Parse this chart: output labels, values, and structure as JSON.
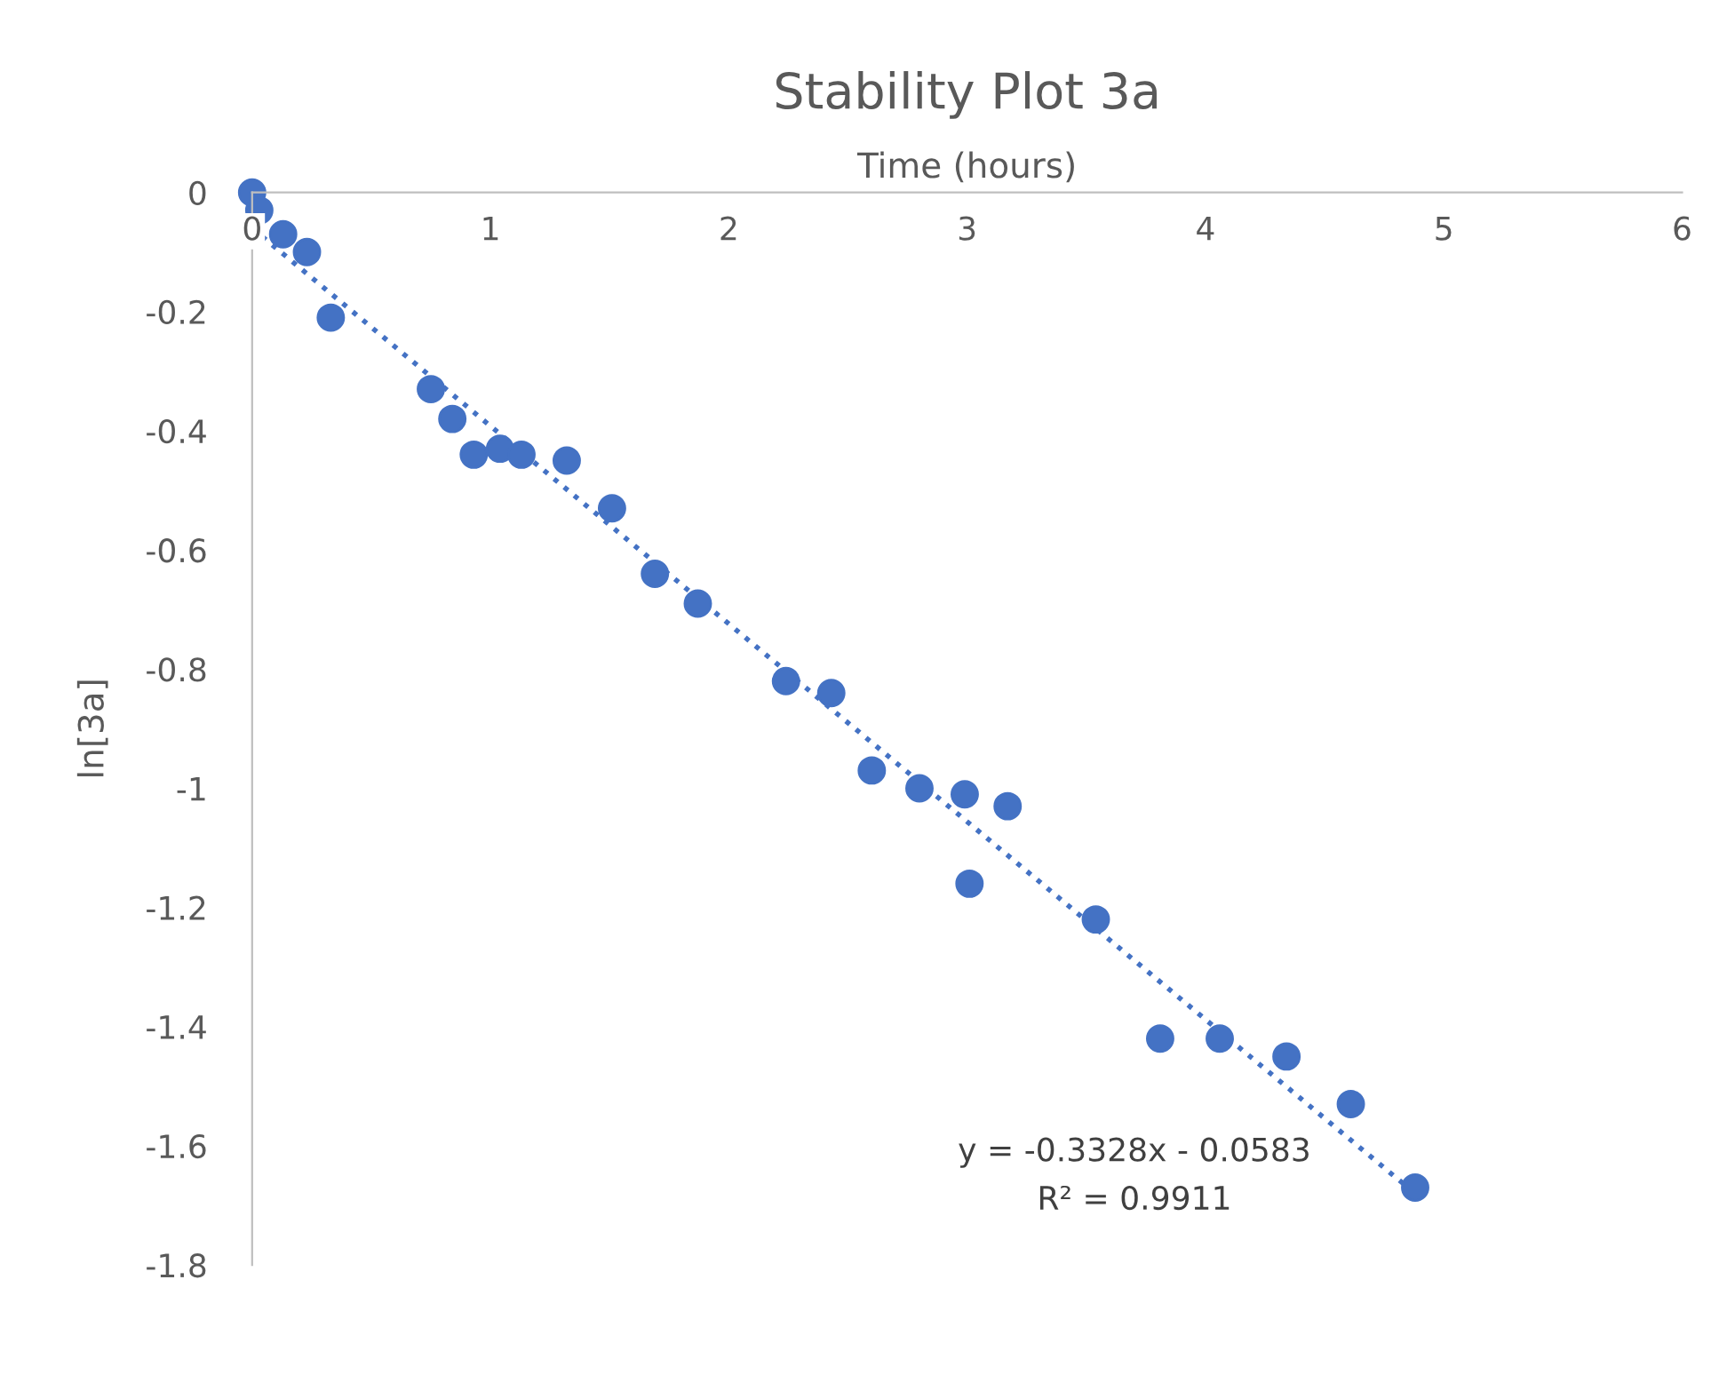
{
  "chart_data": {
    "type": "scatter",
    "title": "Stability Plot 3a",
    "xlabel": "Time (hours)",
    "ylabel": "ln[3a]",
    "xlim": [
      0,
      6
    ],
    "xticks": [
      0,
      1,
      2,
      3,
      4,
      5,
      6
    ],
    "ylim": [
      -1.8,
      0
    ],
    "yticks": [
      -1.8,
      -1.6,
      -1.4,
      -1.2,
      -1,
      -0.8,
      -0.6,
      -0.4,
      -0.2,
      0
    ],
    "grid": false,
    "legend": false,
    "series": [
      {
        "color": "#4472c4",
        "marker": "circle",
        "x": [
          0,
          0.03,
          0.13,
          0.23,
          0.33,
          0.75,
          0.84,
          0.93,
          1.04,
          1.13,
          1.32,
          1.51,
          1.69,
          1.87,
          2.24,
          2.43,
          2.6,
          2.8,
          2.99,
          3.01,
          3.17,
          3.54,
          3.81,
          4.06,
          4.34,
          4.61,
          4.88
        ],
        "values": [
          0,
          -0.03,
          -0.07,
          -0.1,
          -0.21,
          -0.33,
          -0.38,
          -0.44,
          -0.43,
          -0.44,
          -0.45,
          -0.53,
          -0.64,
          -0.69,
          -0.82,
          -0.84,
          -0.97,
          -1.0,
          -1.01,
          -1.16,
          -1.03,
          -1.22,
          -1.42,
          -1.42,
          -1.45,
          -1.53,
          -1.67
        ]
      },
      {
        "type": "line",
        "color": "#4472c4",
        "line_style": "dotted",
        "x": [
          0,
          4.88
        ],
        "values": [
          -0.06,
          -1.68
        ]
      }
    ],
    "annotations": [
      "y = -0.3328x - 0.0583",
      "R² = 0.9911"
    ]
  }
}
